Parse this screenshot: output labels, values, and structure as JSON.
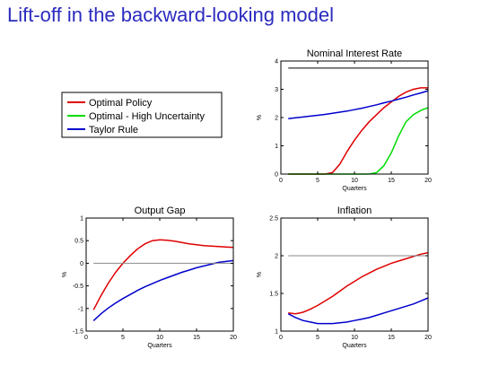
{
  "slide": {
    "title": "Lift-off in the backward-looking model"
  },
  "colors": {
    "optimal": "#e00000",
    "uncertainty": "#00dd00",
    "taylor": "#0000cc",
    "reference": "#888888",
    "level": "#000000",
    "title": "#2b2bbf"
  },
  "legend": {
    "placement": "left",
    "entries": [
      {
        "label": "Optimal Policy",
        "color": "#e00000"
      },
      {
        "label": "Optimal - High Uncertainty",
        "color": "#00dd00"
      },
      {
        "label": "Taylor Rule",
        "color": "#0000cc"
      }
    ]
  },
  "chart_data": [
    {
      "id": "nominal",
      "type": "line",
      "title": "Nominal Interest Rate",
      "xlabel": "Quarters",
      "ylabel": "%",
      "xlim": [
        0,
        20
      ],
      "ylim": [
        0,
        4
      ],
      "xticks": [
        "0",
        "5",
        "10",
        "15",
        "20"
      ],
      "yticks": [
        "0",
        "1",
        "2",
        "3",
        "4"
      ],
      "grid": false,
      "series": [
        {
          "name": "Optimal Policy",
          "color": "#e00000",
          "x": [
            1,
            2,
            3,
            4,
            5,
            6,
            7,
            8,
            9,
            10,
            11,
            12,
            13,
            14,
            15,
            16,
            17,
            18,
            19,
            20
          ],
          "y": [
            0,
            0,
            0,
            0,
            0,
            0,
            0.05,
            0.35,
            0.8,
            1.2,
            1.55,
            1.85,
            2.1,
            2.35,
            2.55,
            2.75,
            2.9,
            3.0,
            3.05,
            3.05
          ]
        },
        {
          "name": "Optimal - High Uncertainty",
          "color": "#00dd00",
          "x": [
            1,
            2,
            3,
            4,
            5,
            6,
            7,
            8,
            9,
            10,
            11,
            12,
            13,
            14,
            15,
            16,
            17,
            18,
            19,
            20
          ],
          "y": [
            0,
            0,
            0,
            0,
            0,
            0,
            0,
            0,
            0,
            0,
            0,
            0,
            0.05,
            0.3,
            0.75,
            1.35,
            1.85,
            2.1,
            2.25,
            2.35
          ]
        },
        {
          "name": "Taylor Rule",
          "color": "#0000cc",
          "x": [
            1,
            2,
            3,
            4,
            5,
            6,
            7,
            8,
            9,
            10,
            11,
            12,
            13,
            14,
            15,
            16,
            17,
            18,
            19,
            20
          ],
          "y": [
            1.96,
            1.99,
            2.02,
            2.05,
            2.08,
            2.11,
            2.15,
            2.19,
            2.23,
            2.28,
            2.33,
            2.39,
            2.45,
            2.52,
            2.58,
            2.65,
            2.72,
            2.8,
            2.87,
            2.95
          ]
        },
        {
          "color": "#000000",
          "x": [
            1,
            20
          ],
          "y": [
            3.75,
            3.75
          ]
        }
      ]
    },
    {
      "id": "output",
      "type": "line",
      "title": "Output Gap",
      "xlabel": "Quarters",
      "ylabel": "%",
      "xlim": [
        0,
        20
      ],
      "ylim": [
        -1.5,
        1
      ],
      "xticks": [
        "0",
        "5",
        "10",
        "15",
        "20"
      ],
      "yticks": [
        "-1.5",
        "-1",
        "-0.5",
        "0",
        "0.5",
        "1"
      ],
      "grid": false,
      "series": [
        {
          "name": "Optimal Policy",
          "color": "#e00000",
          "x": [
            1,
            2,
            3,
            4,
            5,
            6,
            7,
            8,
            9,
            10,
            11,
            12,
            13,
            14,
            15,
            16,
            17,
            18,
            19,
            20
          ],
          "y": [
            -1.03,
            -0.72,
            -0.44,
            -0.2,
            0.0,
            0.17,
            0.32,
            0.43,
            0.5,
            0.52,
            0.51,
            0.49,
            0.46,
            0.43,
            0.41,
            0.39,
            0.38,
            0.37,
            0.36,
            0.35
          ]
        },
        {
          "name": "Taylor Rule",
          "color": "#0000cc",
          "x": [
            1,
            2,
            3,
            4,
            5,
            6,
            7,
            8,
            9,
            10,
            11,
            12,
            13,
            14,
            15,
            16,
            17,
            18,
            19,
            20
          ],
          "y": [
            -1.27,
            -1.12,
            -0.99,
            -0.88,
            -0.78,
            -0.69,
            -0.6,
            -0.52,
            -0.45,
            -0.38,
            -0.32,
            -0.26,
            -0.2,
            -0.15,
            -0.1,
            -0.06,
            -0.02,
            0.02,
            0.04,
            0.06
          ]
        },
        {
          "color": "#888888",
          "x": [
            1,
            20
          ],
          "y": [
            0,
            0
          ]
        }
      ]
    },
    {
      "id": "inflation",
      "type": "line",
      "title": "Inflation",
      "xlabel": "Quarters",
      "ylabel": "%",
      "xlim": [
        0,
        20
      ],
      "ylim": [
        1,
        2.5
      ],
      "xticks": [
        "0",
        "5",
        "10",
        "15",
        "20"
      ],
      "yticks": [
        "1",
        "1.5",
        "2",
        "2.5"
      ],
      "grid": false,
      "series": [
        {
          "name": "Optimal Policy",
          "color": "#e00000",
          "x": [
            1,
            2,
            3,
            4,
            5,
            6,
            7,
            8,
            9,
            10,
            11,
            12,
            13,
            14,
            15,
            16,
            17,
            18,
            19,
            20
          ],
          "y": [
            1.24,
            1.23,
            1.25,
            1.29,
            1.34,
            1.4,
            1.46,
            1.53,
            1.6,
            1.66,
            1.72,
            1.77,
            1.82,
            1.86,
            1.9,
            1.93,
            1.96,
            1.99,
            2.02,
            2.04
          ]
        },
        {
          "name": "Taylor Rule",
          "color": "#0000cc",
          "x": [
            1,
            2,
            3,
            4,
            5,
            6,
            7,
            8,
            9,
            10,
            11,
            12,
            13,
            14,
            15,
            16,
            17,
            18,
            19,
            20
          ],
          "y": [
            1.23,
            1.18,
            1.14,
            1.12,
            1.1,
            1.1,
            1.1,
            1.11,
            1.12,
            1.14,
            1.16,
            1.18,
            1.21,
            1.24,
            1.27,
            1.3,
            1.33,
            1.36,
            1.4,
            1.44
          ]
        },
        {
          "color": "#888888",
          "x": [
            1,
            20
          ],
          "y": [
            2,
            2
          ]
        }
      ]
    }
  ]
}
